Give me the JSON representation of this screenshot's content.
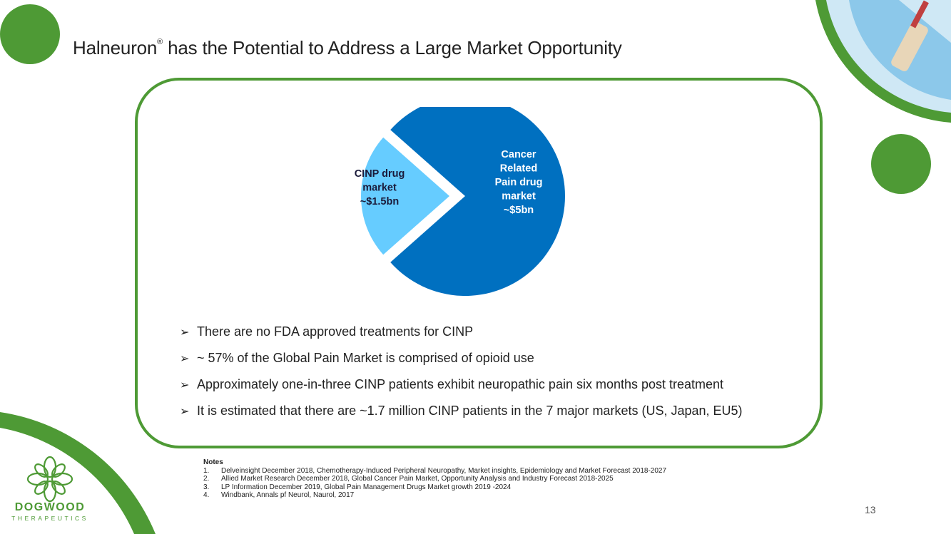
{
  "slide": {
    "title": "Halneuron",
    "title_mark": "®",
    "title_rest": " has the Potential to Address a Large Market Opportunity",
    "page_number": "13"
  },
  "chart_data": {
    "type": "pie",
    "slices": [
      {
        "label_lines": [
          "Cancer",
          "Related",
          "Pain drug",
          "market",
          "~$5bn"
        ],
        "value": 5.0,
        "color": "#0070c0"
      },
      {
        "label_lines": [
          "CINP drug",
          "market",
          "~$1.5bn"
        ],
        "value": 1.5,
        "color": "#66ccff",
        "exploded": true
      }
    ]
  },
  "bullets": [
    "There are no FDA approved treatments for CINP",
    "~ 57% of the Global Pain Market is comprised of opioid use",
    "Approximately one-in-three CINP patients exhibit neuropathic pain six months post treatment",
    "It is estimated that there are ~1.7 million CINP patients in the 7 major markets (US, Japan, EU5)"
  ],
  "bullet_glyph": "➢",
  "notes": {
    "heading": "Notes",
    "items": [
      {
        "num": "1.",
        "text": "Delveinsight December 2018, Chemotherapy-Induced Peripheral Neuropathy, Market insights, Epidemiology and Market Forecast 2018-2027"
      },
      {
        "num": "2.",
        "text": "Allied Market Research December 2018, Global Cancer Pain Market, Opportunity Analysis and Industry Forecast 2018-2025"
      },
      {
        "num": "3.",
        "text": "LP Information December 2019, Global Pain Management Drugs Market growth 2019 -2024"
      },
      {
        "num": "4.",
        "text": "Windbank, Annals pf Neurol,  Naurol, 2017"
      }
    ]
  },
  "logo": {
    "name": "DOGWOOD",
    "tagline": "THERAPEUTICS"
  },
  "colors": {
    "brand_green": "#4e9a35",
    "dark_blue": "#0070c0",
    "light_blue": "#66ccff"
  }
}
